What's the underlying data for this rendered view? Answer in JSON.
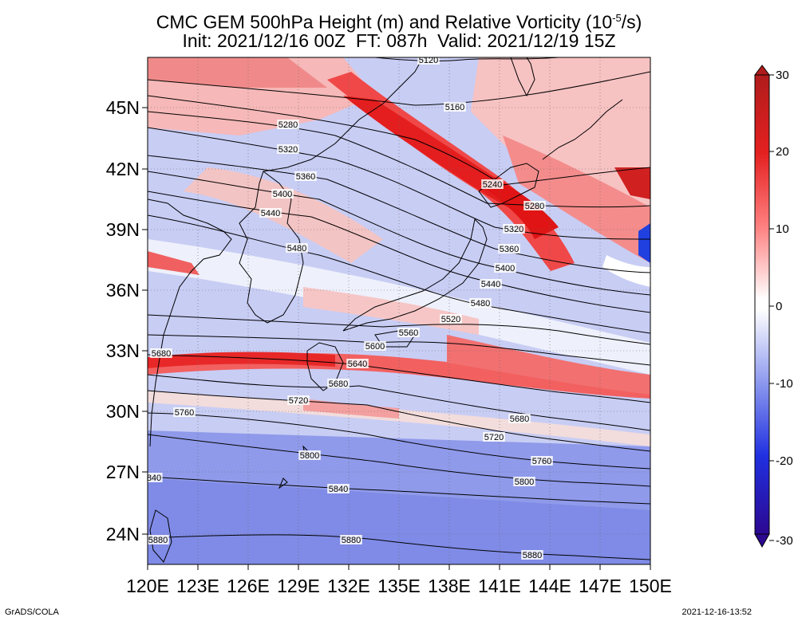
{
  "title": {
    "line1_prefix": "CMC GEM 500hPa Height (m) and Relative Vorticity (10",
    "line1_exp": "-5",
    "line1_suffix": "/s)",
    "line2": "Init: 2021/12/16 00Z  FT: 087h  Valid: 2021/12/19 15Z"
  },
  "axes": {
    "lon_labels": [
      "120E",
      "123E",
      "126E",
      "129E",
      "132E",
      "135E",
      "138E",
      "141E",
      "144E",
      "147E",
      "150E"
    ],
    "lat_labels": [
      "45N",
      "42N",
      "39N",
      "36N",
      "33N",
      "30N",
      "27N",
      "24N"
    ],
    "lon_range": [
      120,
      150
    ],
    "lat_range": [
      22.5,
      47.5
    ]
  },
  "colorbar": {
    "ticks": [
      "30",
      "20",
      "10",
      "0",
      "-10",
      "-20",
      "-30"
    ],
    "colors": [
      "#b52020",
      "#e83030",
      "#ff9a9a",
      "#ffffff",
      "#9aa6ee",
      "#3040e0",
      "#2a0a9a"
    ]
  },
  "contours": [
    {
      "label": "5120"
    },
    {
      "label": "5160"
    },
    {
      "label": "5240"
    },
    {
      "label": "5280"
    },
    {
      "label": "5280"
    },
    {
      "label": "5320"
    },
    {
      "label": "5320"
    },
    {
      "label": "5360"
    },
    {
      "label": "5360"
    },
    {
      "label": "5400"
    },
    {
      "label": "5400"
    },
    {
      "label": "5440"
    },
    {
      "label": "5440"
    },
    {
      "label": "5480"
    },
    {
      "label": "5480"
    },
    {
      "label": "5520"
    },
    {
      "label": "5560"
    },
    {
      "label": "5600"
    },
    {
      "label": "5640"
    },
    {
      "label": "5680"
    },
    {
      "label": "5680"
    },
    {
      "label": "5680"
    },
    {
      "label": "5720"
    },
    {
      "label": "5720"
    },
    {
      "label": "5760"
    },
    {
      "label": "5760"
    },
    {
      "label": "5800"
    },
    {
      "label": "5800"
    },
    {
      "label": "5840"
    },
    {
      "label": "840"
    },
    {
      "label": "5880"
    },
    {
      "label": "5880"
    },
    {
      "label": "5880"
    }
  ],
  "footer": {
    "left": "GrADS/COLA",
    "right": "2021-12-16-13:52"
  }
}
